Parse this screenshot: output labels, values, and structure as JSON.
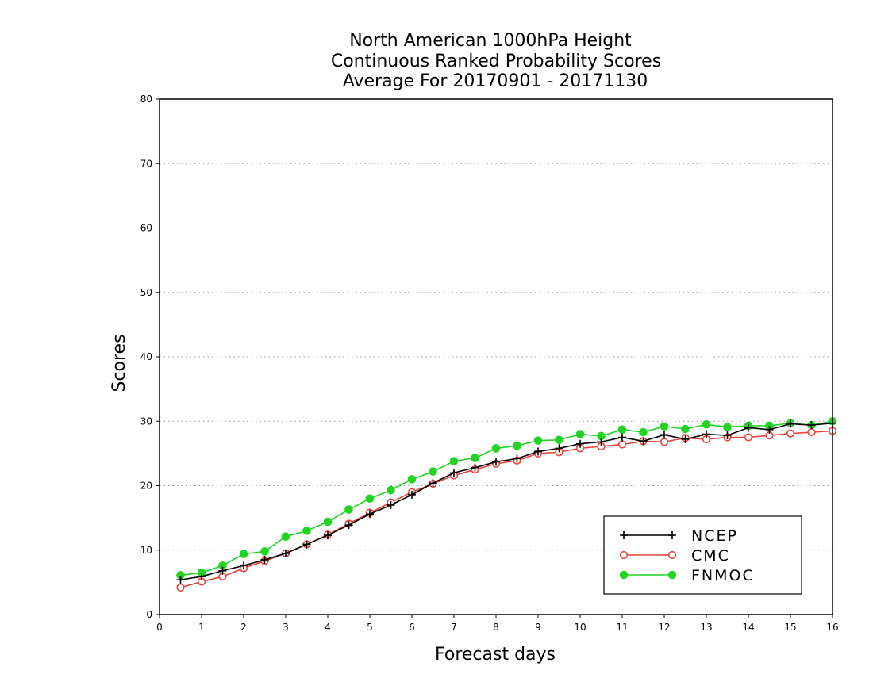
{
  "chart_data": {
    "type": "line",
    "title_lines": [
      "North American 1000hPa Height",
      "Continuous Ranked Probability Scores",
      "Average For 20170901 - 20171130"
    ],
    "xlabel": "Forecast days",
    "ylabel": "Scores",
    "xlim": [
      0,
      16
    ],
    "ylim": [
      0,
      80
    ],
    "x_ticks": [
      0,
      1,
      2,
      3,
      4,
      5,
      6,
      7,
      8,
      9,
      10,
      11,
      12,
      13,
      14,
      15,
      16
    ],
    "y_ticks": [
      0,
      10,
      20,
      30,
      40,
      50,
      60,
      70,
      80
    ],
    "grid": "horizontal dotted",
    "legend_position": "bottom-right",
    "x": [
      0.5,
      1,
      1.5,
      2,
      2.5,
      3,
      3.5,
      4,
      4.5,
      5,
      5.5,
      6,
      6.5,
      7,
      7.5,
      8,
      8.5,
      9,
      9.5,
      10,
      10.5,
      11,
      11.5,
      12,
      12.5,
      13,
      13.5,
      14,
      14.5,
      15,
      15.5,
      16
    ],
    "series": [
      {
        "name": "NCEP",
        "color": "#000000",
        "marker": "plus",
        "values": [
          5.4,
          5.9,
          6.8,
          7.6,
          8.5,
          9.5,
          10.9,
          12.3,
          13.9,
          15.6,
          17.0,
          18.6,
          20.4,
          22.0,
          22.8,
          23.7,
          24.2,
          25.3,
          25.8,
          26.5,
          26.8,
          27.5,
          26.9,
          27.9,
          27.2,
          28.0,
          27.8,
          29.0,
          28.7,
          29.6,
          29.4,
          29.7
        ]
      },
      {
        "name": "CMC",
        "color": "#e8403a",
        "marker": "open-circle",
        "values": [
          4.2,
          5.1,
          5.9,
          7.2,
          8.3,
          9.5,
          10.9,
          12.4,
          14.1,
          15.8,
          17.4,
          19.0,
          20.3,
          21.6,
          22.5,
          23.4,
          23.9,
          25.0,
          25.2,
          25.8,
          26.1,
          26.4,
          26.9,
          26.8,
          27.4,
          27.2,
          27.5,
          27.5,
          27.8,
          28.1,
          28.3,
          28.5
        ]
      },
      {
        "name": "FNMOC",
        "color": "#22d422",
        "marker": "filled-circle",
        "values": [
          6.1,
          6.5,
          7.6,
          9.4,
          9.8,
          12.1,
          13.0,
          14.4,
          16.3,
          18.0,
          19.3,
          21.0,
          22.2,
          23.8,
          24.3,
          25.8,
          26.2,
          27.0,
          27.1,
          28.0,
          27.7,
          28.7,
          28.3,
          29.2,
          28.8,
          29.5,
          29.1,
          29.3,
          29.3,
          29.7,
          29.4,
          30.0
        ]
      }
    ]
  }
}
